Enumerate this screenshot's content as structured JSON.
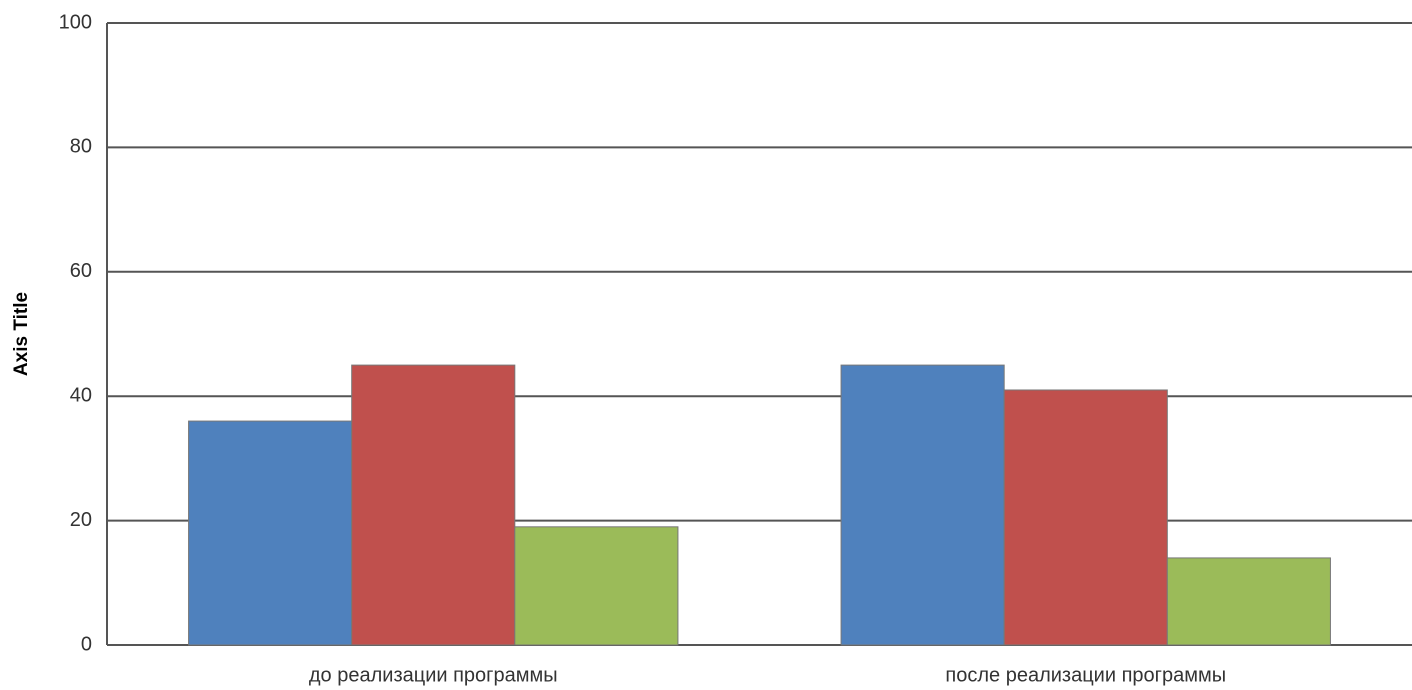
{
  "chart_data": {
    "type": "bar",
    "y_axis_label": "Axis Title",
    "categories": [
      "до реализации программы",
      "после реализации программы"
    ],
    "series": [
      {
        "color": "#4f81bd",
        "values": [
          36,
          45
        ]
      },
      {
        "color": "#c0504d",
        "values": [
          45,
          41
        ]
      },
      {
        "color": "#9bbb59",
        "values": [
          19,
          14
        ]
      }
    ],
    "ylim": [
      0,
      100
    ],
    "yticks": [
      0,
      20,
      40,
      60,
      80,
      100
    ],
    "grid": true
  }
}
